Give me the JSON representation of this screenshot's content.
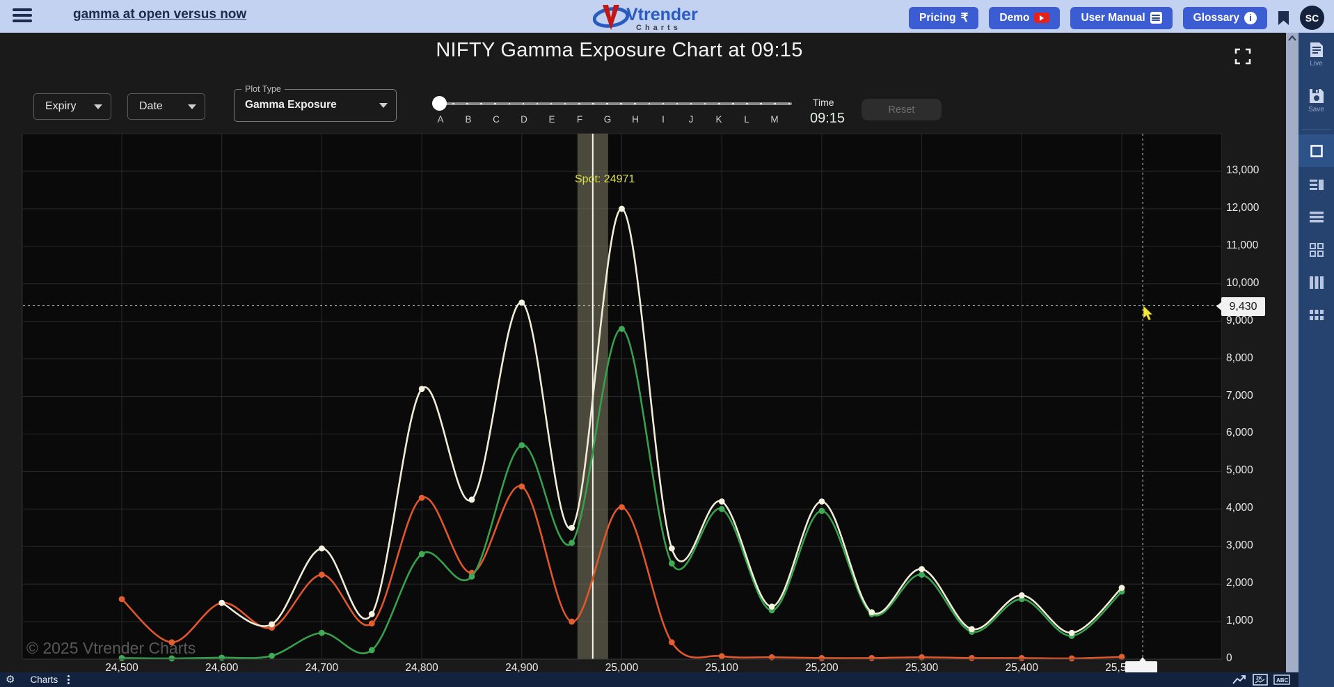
{
  "header": {
    "menu_link": "gamma at open versus now",
    "logo": {
      "name": "Vtrender",
      "sub": "Charts"
    },
    "buttons": [
      {
        "label": "Pricing",
        "icon": "rupee-icon"
      },
      {
        "label": "Demo",
        "icon": "youtube-icon"
      },
      {
        "label": "User Manual",
        "icon": "document-icon"
      },
      {
        "label": "Glossary",
        "icon": "info-icon"
      }
    ],
    "avatar_initials": "SC"
  },
  "title": "NIFTY Gamma Exposure Chart at 09:15",
  "controls": {
    "expiry_label": "Expiry",
    "date_label": "Date",
    "plot_type_label": "Plot Type",
    "plot_type_value": "Gamma Exposure",
    "slider_letters": [
      "A",
      "B",
      "C",
      "D",
      "E",
      "F",
      "G",
      "H",
      "I",
      "J",
      "K",
      "L",
      "M"
    ],
    "time_label": "Time",
    "time_value": "09:15",
    "reset_label": "Reset"
  },
  "chart_data": {
    "type": "line",
    "title": "NIFTY Gamma Exposure Chart at 09:15",
    "grid": true,
    "legend": "none",
    "xlim": [
      24400,
      25600
    ],
    "ylim": [
      0,
      14000
    ],
    "x_tick_values": [
      24500,
      24600,
      24700,
      24800,
      24900,
      25000,
      25100,
      25200,
      25300,
      25400,
      25500
    ],
    "y_tick_values": [
      0,
      1000,
      2000,
      3000,
      4000,
      5000,
      6000,
      7000,
      8000,
      9000,
      10000,
      11000,
      12000,
      13000
    ],
    "x": [
      24500,
      24550,
      24600,
      24650,
      24700,
      24750,
      24800,
      24850,
      24900,
      24950,
      25000,
      25050,
      25100,
      25150,
      25200,
      25250,
      25300,
      25350,
      25400,
      25450,
      25500
    ],
    "series": [
      {
        "name": "cream-line",
        "color": "#f0ecd8",
        "dot_color": "#f6f2e2",
        "values": [
          null,
          null,
          1500,
          930,
          2950,
          1200,
          7200,
          4250,
          9500,
          3500,
          12000,
          2950,
          4200,
          1400,
          4200,
          1250,
          2400,
          800,
          1700,
          700,
          1900
        ]
      },
      {
        "name": "green-line",
        "color": "#37a04c",
        "dot_color": "#41aa56",
        "values": [
          30,
          20,
          40,
          90,
          700,
          240,
          2800,
          2200,
          5700,
          3100,
          8800,
          2550,
          4000,
          1300,
          3950,
          1200,
          2250,
          730,
          1600,
          620,
          1800
        ]
      },
      {
        "name": "orange-line",
        "color": "#e0572b",
        "dot_color": "#e express35e2f",
        "values": [
          1600,
          450,
          1500,
          840,
          2250,
          950,
          4300,
          2300,
          4600,
          1000,
          4050,
          450,
          80,
          50,
          30,
          30,
          50,
          30,
          30,
          20,
          60
        ]
      }
    ],
    "spot_marker": {
      "label": "Spot: 24971",
      "x": 24971
    },
    "crosshair": {
      "y_value": 9430,
      "y_label": "9,430",
      "x_position": 25521
    }
  },
  "sidebar": {
    "live_label": "Live",
    "save_label": "Save",
    "icons": [
      "live-feed-icon",
      "save-icon",
      "single-pane-icon",
      "list-pane-icon",
      "rows-icon",
      "grid-2x2-icon",
      "columns-3-icon",
      "grid-3x3-icon"
    ]
  },
  "footer": {
    "watermark": "© 2025 Vtrender Charts",
    "tab_label": "Charts"
  }
}
